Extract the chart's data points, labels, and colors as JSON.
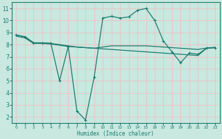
{
  "xlabel": "Humidex (Indice chaleur)",
  "bg_color": "#c8e8e0",
  "grid_color": "#e8c8c8",
  "line_color": "#1a7a6e",
  "xlim": [
    -0.5,
    23.5
  ],
  "ylim": [
    1.5,
    11.5
  ],
  "xticks": [
    0,
    1,
    2,
    3,
    4,
    5,
    6,
    7,
    8,
    9,
    10,
    11,
    12,
    13,
    14,
    15,
    16,
    17,
    18,
    19,
    20,
    21,
    22,
    23
  ],
  "yticks": [
    2,
    3,
    4,
    5,
    6,
    7,
    8,
    9,
    10,
    11
  ],
  "series": [
    {
      "x": [
        0,
        1,
        2,
        3,
        4,
        5,
        6,
        7,
        8,
        9,
        10,
        11,
        12,
        13,
        14,
        15,
        16,
        17,
        18,
        19,
        20,
        21,
        22,
        23
      ],
      "y": [
        8.8,
        8.65,
        8.15,
        8.15,
        8.1,
        8.0,
        7.9,
        7.8,
        7.75,
        7.7,
        7.65,
        7.6,
        7.55,
        7.5,
        7.45,
        7.4,
        7.35,
        7.3,
        7.25,
        7.2,
        7.15,
        7.1,
        7.7,
        7.75
      ],
      "marker": null,
      "lw": 0.9
    },
    {
      "x": [
        0,
        1,
        2,
        3,
        4,
        5,
        6,
        7,
        8,
        9,
        10,
        11,
        12,
        13,
        14,
        15,
        16,
        17,
        18,
        19,
        20,
        21,
        22,
        23
      ],
      "y": [
        8.7,
        8.55,
        8.1,
        8.1,
        8.05,
        7.95,
        7.85,
        7.8,
        7.75,
        7.7,
        7.8,
        7.9,
        7.9,
        7.9,
        7.9,
        7.9,
        7.85,
        7.8,
        7.75,
        7.7,
        7.65,
        7.6,
        7.72,
        7.78
      ],
      "marker": null,
      "lw": 0.9
    },
    {
      "x": [
        0,
        1,
        2,
        3,
        4,
        5,
        6,
        7,
        8,
        9,
        10,
        11,
        12,
        13,
        14,
        15,
        16,
        17,
        18,
        19,
        20,
        21,
        22,
        23
      ],
      "y": [
        8.8,
        8.65,
        8.15,
        8.15,
        8.1,
        5.0,
        7.85,
        2.5,
        1.75,
        5.3,
        10.2,
        10.35,
        10.2,
        10.3,
        10.85,
        11.0,
        10.0,
        8.3,
        7.4,
        6.5,
        7.3,
        7.2,
        7.7,
        7.75
      ],
      "marker": "+",
      "lw": 0.9
    }
  ]
}
